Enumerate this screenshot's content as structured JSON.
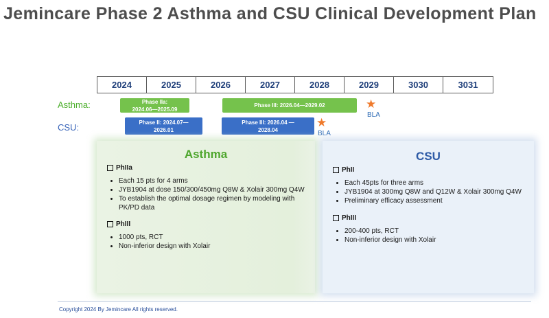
{
  "title": "Jemincare Phase 2 Asthma and CSU Clinical Development Plan",
  "timeline": {
    "years": [
      "2024",
      "2025",
      "2026",
      "2027",
      "2028",
      "2029",
      "3030",
      "3031"
    ],
    "asthma_label": "Asthma:",
    "csu_label": "CSU:",
    "asthma_bars": [
      {
        "line1": "Phase IIa:",
        "line2": "2024.06—2025.09"
      },
      {
        "line1": "Phase III: 2026.04—2029.02",
        "line2": ""
      }
    ],
    "csu_bars": [
      {
        "line1": "Phase II: 2024.07—",
        "line2": "2026.01"
      },
      {
        "line1": "Phase III: 2026.04 —",
        "line2": "2028.04"
      }
    ],
    "milestone_label": "BLA",
    "milestone_color": "#ef7a2c"
  },
  "asthma_panel": {
    "title": "Asthma",
    "phase1_label": "PhIIa",
    "phase1_items": [
      "Each 15 pts for 4 arms",
      "JYB1904 at dose 150/300/450mg Q8W & Xolair 300mg Q4W",
      "To establish the optimal dosage regimen by modeling with PK/PD data"
    ],
    "phase2_label": "PhIII",
    "phase2_items": [
      "1000 pts, RCT",
      "Non-inferior design with Xolair"
    ]
  },
  "csu_panel": {
    "title": "CSU",
    "phase1_label": "PhII",
    "phase1_items": [
      "Each 45pts for three arms",
      "JYB1904 at 300mg Q8W and Q12W & Xolair 300mg Q4W",
      "Preliminary efficacy assessment"
    ],
    "phase2_label": "PhIII",
    "phase2_items": [
      "200-400 pts, RCT",
      "Non-inferior design with Xolair"
    ]
  },
  "copyright": "Copyright 2024 By Jemincare All rights reserved.",
  "colors": {
    "asthma_green": "#75c24c",
    "csu_blue": "#3a6fc7",
    "title_gray": "#4d4d4d"
  }
}
